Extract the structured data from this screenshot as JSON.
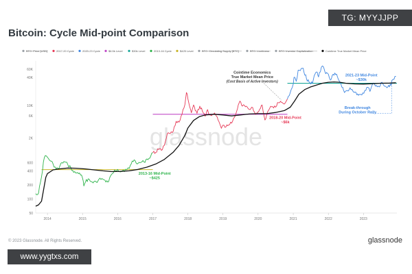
{
  "header": {
    "title": "Bitcoin: Cycle Mid-point Comparison",
    "tg_badge": "TG: MYYJJPP"
  },
  "footer": {
    "copyright": "© 2023 Glassnode. All Rights Reserved.",
    "brand": "glassnode",
    "url_badge": "www.yygtxs.com"
  },
  "watermark": "glassnode",
  "colors": {
    "price_2017": "#e63956",
    "price_2020": "#3f86e0",
    "price_2013": "#2db34a",
    "mean_price": "#111111",
    "level_65k": "#c04ac9",
    "level_30k": "#1aa89a",
    "level_425": "#c8b428"
  },
  "chart_data": {
    "type": "line",
    "x_axis": {
      "type": "date",
      "range": [
        "2013-09-01",
        "2023-12-15"
      ],
      "ticks": [
        "2014",
        "2015",
        "2016",
        "2017",
        "2018",
        "2019",
        "2020",
        "2021",
        "2022",
        "2023"
      ]
    },
    "y_axis": {
      "scale": "log",
      "range": [
        50,
        90000
      ],
      "ticks": [
        {
          "value": 50,
          "label": "50"
        },
        {
          "value": 100,
          "label": "100"
        },
        {
          "value": 200,
          "label": "200"
        },
        {
          "value": 400,
          "label": "400"
        },
        {
          "value": 600,
          "label": "600"
        },
        {
          "value": 2000,
          "label": "2K"
        },
        {
          "value": 6000,
          "label": "6K"
        },
        {
          "value": 10000,
          "label": "10K"
        },
        {
          "value": 40000,
          "label": "40K"
        },
        {
          "value": 60000,
          "label": "60K"
        }
      ]
    },
    "grid": false,
    "legend": {
      "placement": "top",
      "entries": [
        {
          "label": "BTC: Price [USD]",
          "color": "#9aa0a6",
          "struck": true
        },
        {
          "label": "2017-20 Cycle",
          "color": "#e63956"
        },
        {
          "label": "2020-23 Cycle",
          "color": "#3f86e0"
        },
        {
          "label": "$6.5k Level",
          "color": "#c04ac9"
        },
        {
          "label": "$30k Level",
          "color": "#1aa89a"
        },
        {
          "label": "2013-16 Cycle",
          "color": "#2db34a"
        },
        {
          "label": "$425 Level",
          "color": "#c8b428"
        },
        {
          "label": "BTC: Circulating Supply [BTC]",
          "color": "#9aa0a6",
          "struck": true
        },
        {
          "label": "BTC: Liveliness",
          "color": "#9aa0a6",
          "struck": true
        },
        {
          "label": "BTC: Investor Capitalization",
          "color": "#9aa0a6",
          "struck": true
        },
        {
          "label": "Cointime True Market Mean Price",
          "color": "#111111"
        }
      ]
    },
    "series": [
      {
        "name": "2013-16 Cycle",
        "color": "#2db34a",
        "points": [
          [
            "2013-09-01",
            130
          ],
          [
            "2013-10-01",
            135
          ],
          [
            "2013-11-01",
            300
          ],
          [
            "2013-11-20",
            620
          ],
          [
            "2013-12-10",
            850
          ],
          [
            "2014-01-01",
            780
          ],
          [
            "2014-02-01",
            650
          ],
          [
            "2014-03-01",
            560
          ],
          [
            "2014-04-01",
            440
          ],
          [
            "2014-05-01",
            450
          ],
          [
            "2014-06-01",
            600
          ],
          [
            "2014-07-01",
            620
          ],
          [
            "2014-08-01",
            540
          ],
          [
            "2014-09-01",
            470
          ],
          [
            "2014-10-01",
            370
          ],
          [
            "2014-11-01",
            360
          ],
          [
            "2014-12-01",
            360
          ],
          [
            "2015-01-01",
            280
          ],
          [
            "2015-01-15",
            190
          ],
          [
            "2015-02-01",
            230
          ],
          [
            "2015-03-01",
            270
          ],
          [
            "2015-04-01",
            235
          ],
          [
            "2015-05-01",
            237
          ],
          [
            "2015-06-01",
            225
          ],
          [
            "2015-07-01",
            280
          ],
          [
            "2015-08-01",
            265
          ],
          [
            "2015-09-01",
            230
          ],
          [
            "2015-10-01",
            240
          ],
          [
            "2015-11-01",
            340
          ],
          [
            "2015-12-01",
            420
          ],
          [
            "2016-01-01",
            430
          ],
          [
            "2016-02-01",
            380
          ],
          [
            "2016-03-01",
            415
          ],
          [
            "2016-04-01",
            420
          ],
          [
            "2016-05-01",
            450
          ],
          [
            "2016-06-01",
            650
          ],
          [
            "2016-07-01",
            660
          ],
          [
            "2016-08-01",
            580
          ],
          [
            "2016-09-01",
            610
          ],
          [
            "2016-10-01",
            620
          ],
          [
            "2016-11-01",
            720
          ],
          [
            "2016-12-01",
            750
          ],
          [
            "2017-01-01",
            980
          ]
        ]
      },
      {
        "name": "2017-20 Cycle",
        "color": "#e63956",
        "points": [
          [
            "2017-01-01",
            980
          ],
          [
            "2017-02-01",
            1000
          ],
          [
            "2017-03-01",
            1150
          ],
          [
            "2017-04-01",
            1100
          ],
          [
            "2017-05-01",
            1400
          ],
          [
            "2017-06-01",
            2500
          ],
          [
            "2017-07-01",
            2500
          ],
          [
            "2017-08-01",
            2800
          ],
          [
            "2017-09-01",
            4600
          ],
          [
            "2017-10-01",
            4400
          ],
          [
            "2017-11-01",
            6500
          ],
          [
            "2017-12-01",
            10500
          ],
          [
            "2017-12-17",
            19000
          ],
          [
            "2018-01-01",
            14000
          ],
          [
            "2018-02-06",
            7000
          ],
          [
            "2018-03-01",
            10300
          ],
          [
            "2018-04-06",
            6800
          ],
          [
            "2018-05-05",
            9700
          ],
          [
            "2018-06-01",
            7500
          ],
          [
            "2018-06-29",
            5900
          ],
          [
            "2018-07-25",
            8200
          ],
          [
            "2018-08-15",
            6300
          ],
          [
            "2018-09-15",
            6500
          ],
          [
            "2018-10-15",
            6400
          ],
          [
            "2018-11-20",
            4500
          ],
          [
            "2018-12-15",
            3250
          ],
          [
            "2019-01-01",
            3800
          ],
          [
            "2019-02-01",
            3500
          ],
          [
            "2019-03-01",
            3850
          ],
          [
            "2019-04-01",
            4200
          ],
          [
            "2019-05-01",
            5600
          ],
          [
            "2019-06-01",
            8600
          ],
          [
            "2019-06-26",
            12500
          ],
          [
            "2019-07-15",
            10000
          ],
          [
            "2019-08-01",
            10400
          ],
          [
            "2019-09-01",
            9700
          ],
          [
            "2019-10-01",
            8300
          ],
          [
            "2019-10-26",
            9200
          ],
          [
            "2019-11-25",
            7200
          ],
          [
            "2019-12-17",
            6700
          ],
          [
            "2020-01-01",
            7200
          ],
          [
            "2020-02-12",
            10300
          ],
          [
            "2020-03-12",
            4900
          ],
          [
            "2020-04-01",
            6600
          ],
          [
            "2020-05-01",
            8800
          ],
          [
            "2020-06-01",
            9500
          ],
          [
            "2020-07-01",
            9200
          ],
          [
            "2020-08-01",
            11500
          ],
          [
            "2020-09-01",
            11700
          ],
          [
            "2020-10-01",
            10800
          ],
          [
            "2020-11-01",
            13800
          ]
        ]
      },
      {
        "name": "2020-23 Cycle",
        "color": "#3f86e0",
        "points": [
          [
            "2020-11-01",
            13800
          ],
          [
            "2020-12-01",
            19000
          ],
          [
            "2021-01-01",
            29000
          ],
          [
            "2021-01-08",
            40000
          ],
          [
            "2021-02-01",
            33000
          ],
          [
            "2021-02-21",
            57000
          ],
          [
            "2021-03-15",
            56000
          ],
          [
            "2021-04-14",
            63000
          ],
          [
            "2021-05-19",
            37000
          ],
          [
            "2021-06-22",
            31000
          ],
          [
            "2021-07-20",
            29800
          ],
          [
            "2021-08-15",
            47000
          ],
          [
            "2021-09-07",
            52000
          ],
          [
            "2021-09-21",
            41000
          ],
          [
            "2021-10-20",
            66000
          ],
          [
            "2021-11-10",
            68000
          ],
          [
            "2021-12-04",
            48000
          ],
          [
            "2022-01-01",
            47000
          ],
          [
            "2022-01-22",
            35000
          ],
          [
            "2022-02-10",
            44000
          ],
          [
            "2022-03-28",
            47000
          ],
          [
            "2022-05-12",
            29000
          ],
          [
            "2022-06-18",
            19000
          ],
          [
            "2022-07-15",
            21000
          ],
          [
            "2022-08-15",
            24000
          ],
          [
            "2022-09-15",
            20000
          ],
          [
            "2022-10-15",
            19200
          ],
          [
            "2022-11-09",
            16500
          ],
          [
            "2022-12-15",
            16800
          ],
          [
            "2023-01-15",
            21000
          ],
          [
            "2023-02-15",
            24500
          ],
          [
            "2023-03-10",
            20000
          ],
          [
            "2023-04-14",
            30400
          ],
          [
            "2023-05-15",
            27000
          ],
          [
            "2023-06-15",
            25000
          ],
          [
            "2023-07-13",
            31500
          ],
          [
            "2023-08-17",
            26000
          ],
          [
            "2023-09-11",
            25000
          ],
          [
            "2023-10-15",
            27000
          ],
          [
            "2023-10-24",
            34500
          ],
          [
            "2023-11-15",
            36500
          ],
          [
            "2023-12-05",
            42000
          ]
        ]
      },
      {
        "name": "Cointime True Market Mean Price",
        "color": "#111111",
        "points": [
          [
            "2013-09-01",
            70
          ],
          [
            "2013-10-01",
            75
          ],
          [
            "2013-11-01",
            90
          ],
          [
            "2013-11-20",
            150
          ],
          [
            "2013-12-15",
            290
          ],
          [
            "2014-01-01",
            350
          ],
          [
            "2014-03-01",
            420
          ],
          [
            "2014-05-01",
            440
          ],
          [
            "2014-08-01",
            460
          ],
          [
            "2014-11-01",
            455
          ],
          [
            "2015-02-01",
            440
          ],
          [
            "2015-05-01",
            420
          ],
          [
            "2015-08-01",
            400
          ],
          [
            "2015-11-01",
            385
          ],
          [
            "2016-02-01",
            390
          ],
          [
            "2016-05-01",
            400
          ],
          [
            "2016-08-01",
            430
          ],
          [
            "2016-11-01",
            480
          ],
          [
            "2017-02-01",
            560
          ],
          [
            "2017-05-01",
            700
          ],
          [
            "2017-08-01",
            1000
          ],
          [
            "2017-10-01",
            1400
          ],
          [
            "2017-12-01",
            2300
          ],
          [
            "2018-01-01",
            3300
          ],
          [
            "2018-03-01",
            4800
          ],
          [
            "2018-05-01",
            5800
          ],
          [
            "2018-07-01",
            6300
          ],
          [
            "2018-10-01",
            6500
          ],
          [
            "2019-01-01",
            6300
          ],
          [
            "2019-04-01",
            6000
          ],
          [
            "2019-07-01",
            6300
          ],
          [
            "2019-10-01",
            6600
          ],
          [
            "2020-01-01",
            6700
          ],
          [
            "2020-04-01",
            6700
          ],
          [
            "2020-07-01",
            7100
          ],
          [
            "2020-10-01",
            7800
          ],
          [
            "2020-12-01",
            9200
          ],
          [
            "2021-01-15",
            12500
          ],
          [
            "2021-03-01",
            17500
          ],
          [
            "2021-05-01",
            22000
          ],
          [
            "2021-07-01",
            25000
          ],
          [
            "2021-09-01",
            27500
          ],
          [
            "2021-11-01",
            30000
          ],
          [
            "2022-01-01",
            31500
          ],
          [
            "2022-03-01",
            32000
          ],
          [
            "2022-05-01",
            31500
          ],
          [
            "2022-07-01",
            30000
          ],
          [
            "2022-10-01",
            29000
          ],
          [
            "2023-01-01",
            28800
          ],
          [
            "2023-04-01",
            29300
          ],
          [
            "2023-07-01",
            30000
          ],
          [
            "2023-10-01",
            30200
          ],
          [
            "2023-12-05",
            30800
          ]
        ]
      }
    ],
    "levels": [
      {
        "name": "$425 Level",
        "value": 425,
        "from": "2013-11-01",
        "to": "2017-01-01",
        "color": "#c8b428"
      },
      {
        "name": "$6.5k Level",
        "value": 6500,
        "from": "2017-01-01",
        "to": "2020-11-01",
        "color": "#c04ac9"
      },
      {
        "name": "$30k Level",
        "value": 30000,
        "from": "2020-11-01",
        "to": "2023-12-15",
        "color": "#1aa89a"
      }
    ],
    "annotations": [
      {
        "text": [
          "2013-16 Mid-Point",
          "~$425"
        ],
        "color": "#2db34a",
        "x": "2017-01-20",
        "y": 330
      },
      {
        "text": [
          "2018-20 Mid-Point",
          "~$6k"
        ],
        "color": "#e63956",
        "x": "2020-10-10",
        "y": 5200
      },
      {
        "text": [
          "2021-23 Mid-Point",
          "~$30k"
        ],
        "color": "#3f86e0",
        "x": "2022-12-10",
        "y": 42000
      },
      {
        "text": [
          "Break-through",
          "During October Rally"
        ],
        "color": "#3f86e0",
        "x": "2022-11-01",
        "y": 8500
      },
      {
        "text": [
          "Cointime Economics",
          "True Market Mean Price",
          "(Cost Basis of Active Investors)"
        ],
        "color": "#333333",
        "x": "2019-11-01",
        "y": 48000
      }
    ]
  }
}
